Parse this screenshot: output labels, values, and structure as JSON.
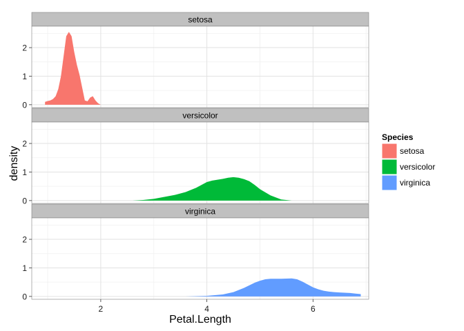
{
  "chart_data": {
    "type": "area",
    "xlabel": "Petal.Length",
    "ylabel": "density",
    "xlim": [
      0.7,
      7.05
    ],
    "ylim": [
      -0.1,
      2.75
    ],
    "x_ticks": [
      2,
      4,
      6
    ],
    "y_ticks": [
      0,
      1,
      2
    ],
    "grid": true,
    "legend": {
      "title": "Species",
      "placement": "right"
    },
    "facets": [
      "setosa",
      "versicolor",
      "virginica"
    ],
    "colors": {
      "setosa": "#F8766D",
      "versicolor": "#00BA38",
      "virginica": "#619CFF"
    },
    "series": [
      {
        "name": "setosa",
        "x": [
          0.95,
          1.0,
          1.05,
          1.1,
          1.15,
          1.2,
          1.25,
          1.3,
          1.35,
          1.4,
          1.45,
          1.5,
          1.55,
          1.6,
          1.65,
          1.7,
          1.75,
          1.8,
          1.85,
          1.9,
          1.95,
          2.0
        ],
        "values": [
          0.1,
          0.13,
          0.15,
          0.2,
          0.3,
          0.55,
          1.0,
          1.7,
          2.4,
          2.55,
          2.4,
          1.85,
          1.4,
          1.05,
          0.6,
          0.15,
          0.12,
          0.25,
          0.3,
          0.15,
          0.05,
          0.0
        ]
      },
      {
        "name": "versicolor",
        "x": [
          2.6,
          2.8,
          3.0,
          3.2,
          3.4,
          3.6,
          3.8,
          3.9,
          4.0,
          4.1,
          4.2,
          4.3,
          4.4,
          4.5,
          4.6,
          4.7,
          4.8,
          4.9,
          5.0,
          5.2,
          5.4,
          5.6
        ],
        "values": [
          0.0,
          0.02,
          0.06,
          0.13,
          0.2,
          0.3,
          0.45,
          0.55,
          0.65,
          0.7,
          0.73,
          0.76,
          0.8,
          0.82,
          0.8,
          0.75,
          0.68,
          0.55,
          0.4,
          0.18,
          0.04,
          0.0
        ]
      },
      {
        "name": "virginica",
        "x": [
          3.6,
          4.0,
          4.3,
          4.5,
          4.7,
          4.9,
          5.0,
          5.1,
          5.2,
          5.4,
          5.6,
          5.7,
          5.8,
          5.9,
          6.0,
          6.1,
          6.2,
          6.3,
          6.4,
          6.5,
          6.6,
          6.7,
          6.8,
          6.9
        ],
        "values": [
          0.0,
          0.02,
          0.07,
          0.15,
          0.3,
          0.48,
          0.55,
          0.6,
          0.62,
          0.62,
          0.63,
          0.6,
          0.52,
          0.42,
          0.32,
          0.25,
          0.2,
          0.17,
          0.15,
          0.14,
          0.13,
          0.12,
          0.1,
          0.08
        ]
      }
    ]
  }
}
